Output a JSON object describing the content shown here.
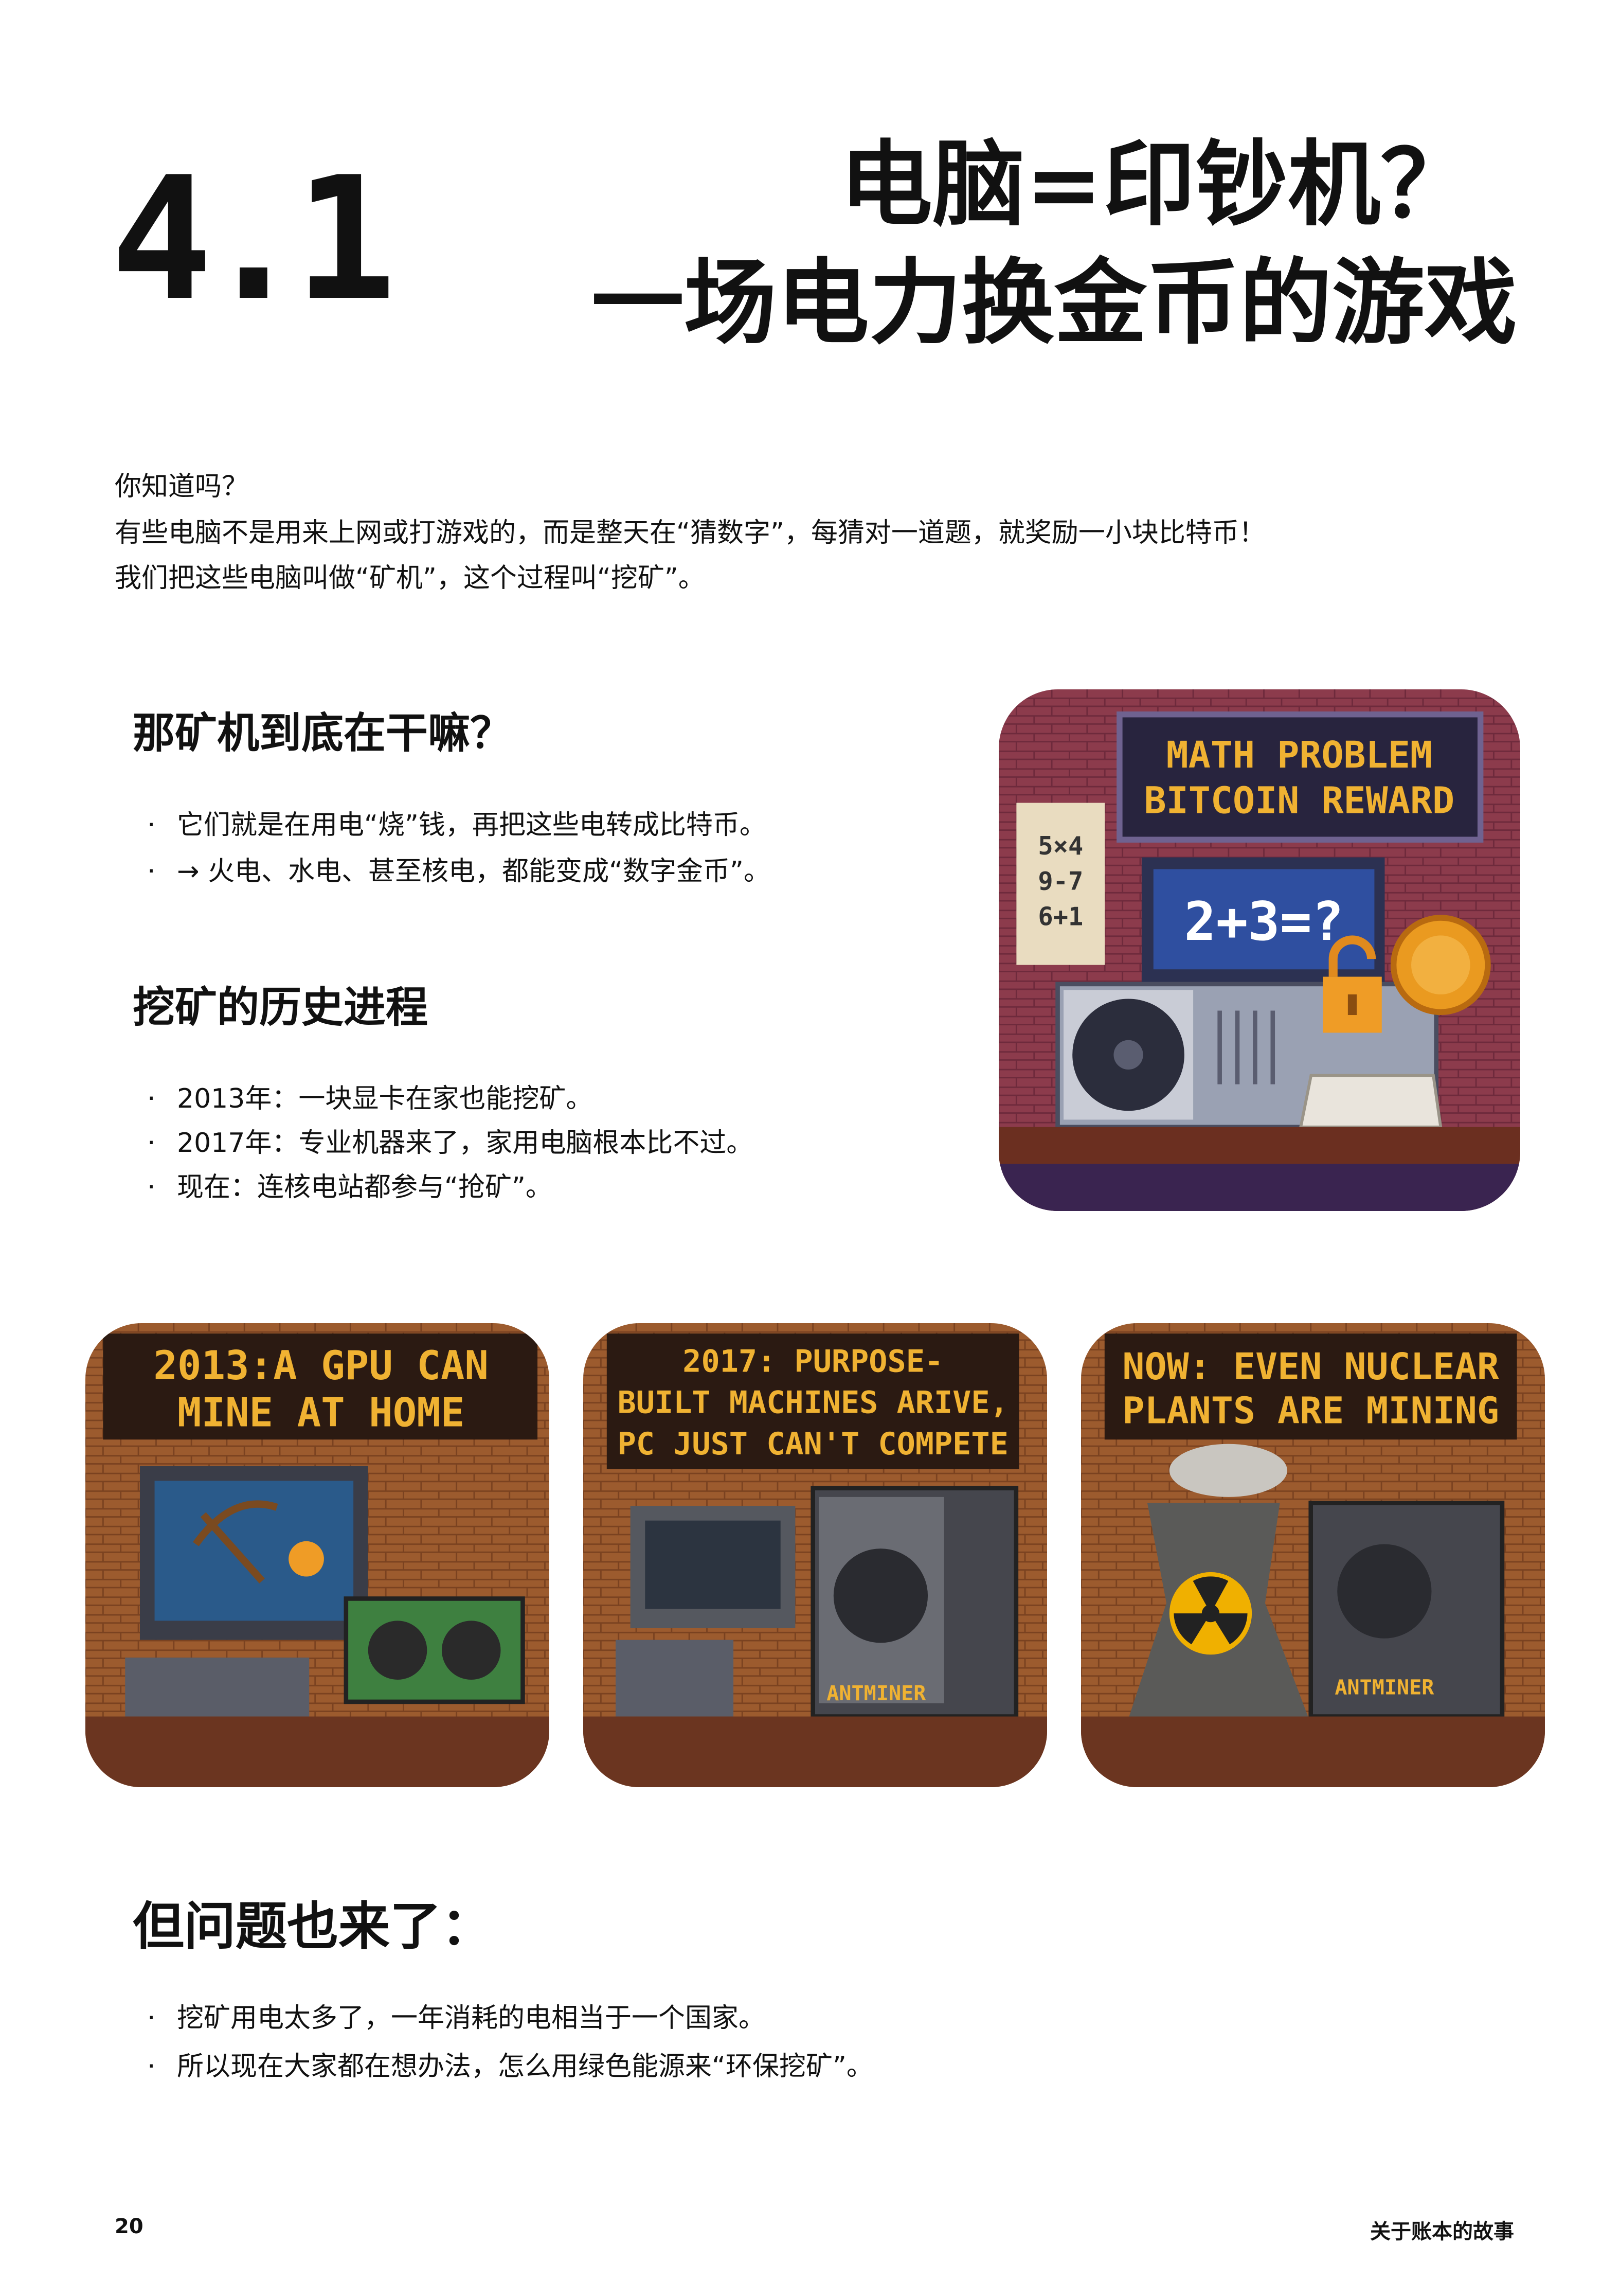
{
  "header": {
    "number": "4.1",
    "title_lines": [
      "电脑=印钞机？",
      "一场电力换金币的游戏"
    ]
  },
  "intro": [
    "你知道吗？",
    "有些电脑不是用来上网或打游戏的，而是整天在“猜数字”，每猜对一道题，就奖励一小块比特币！",
    "我们把这些电脑叫做“矿机”，这个过程叫“挖矿”。"
  ],
  "sections": [
    {
      "heading": "那矿机到底在干嘛？",
      "bullets": [
        "它们就是在用电“烧”钱，再把这些电转成比特币。",
        "→ 火电、水电、甚至核电，都能变成“数字金币”。"
      ]
    },
    {
      "heading": "挖矿的历史进程",
      "bullets": [
        "2013年：一块显卡在家也能挖矿。",
        "2017年：专业机器来了，家用电脑根本比不过。",
        "现在：连核电站都参与“抢矿”。"
      ]
    },
    {
      "heading": "但问题也来了：",
      "bullets": [
        "挖矿用电太多了，一年消耗的电相当于一个国家。",
        "所以现在大家都在想办法，怎么用绿色能源来“环保挖矿”。"
      ]
    }
  ],
  "illustrations": {
    "mining_machine": {
      "sign": [
        "MATH PROBLEM",
        "BITCOIN REWARD"
      ],
      "note": [
        "5×4",
        "9-7",
        "6+1"
      ],
      "screen": "2+3=?"
    },
    "panels": [
      {
        "sign": [
          "2013:A GPU CAN",
          "MINE AT HOME"
        ]
      },
      {
        "sign": [
          "2017: PURPOSE-",
          "BUILT MACHINES ARIVE,",
          "PC JUST CAN'T COMPETE"
        ],
        "machine_label": "ANTMINER"
      },
      {
        "sign": [
          "NOW: EVEN NUCLEAR",
          "PLANTS ARE MINING"
        ],
        "machine_label": "ANTMINER"
      }
    ]
  },
  "footer": {
    "page": "20",
    "book": "关于账本的故事"
  }
}
